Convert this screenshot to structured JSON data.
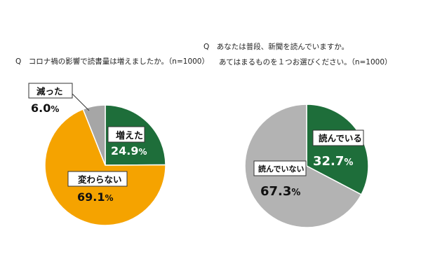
{
  "charts": [
    {
      "question_prefix": "Q",
      "question": "コロナ禍の影響で読書量は増えましたか。（n=1000）",
      "chart_data": {
        "type": "pie",
        "start_angle_deg": 0,
        "direction": "clockwise",
        "slices": [
          {
            "label": "増えた",
            "value": 24.9,
            "value_text": "24.9",
            "unit": "%",
            "color": "#1e6e3a"
          },
          {
            "label": "変わらない",
            "value": 69.1,
            "value_text": "69.1",
            "unit": "%",
            "color": "#f5a300"
          },
          {
            "label": "減った",
            "value": 6.0,
            "value_text": "6.0",
            "unit": "%",
            "color": "#a6a6a6"
          }
        ]
      }
    },
    {
      "question_prefix": "Q",
      "question_line1": "あなたは普段、新聞を読んでいますか。",
      "question_line2": "あてはまるものを１つお選びください。（n=1000）",
      "chart_data": {
        "type": "pie",
        "start_angle_deg": 0,
        "direction": "clockwise",
        "slices": [
          {
            "label": "読んでいる",
            "value": 32.7,
            "value_text": "32.7",
            "unit": "%",
            "color": "#1e6e3a"
          },
          {
            "label": "読んでいない",
            "value": 67.3,
            "value_text": "67.3",
            "unit": "%",
            "color": "#b3b3b3"
          }
        ]
      }
    }
  ]
}
